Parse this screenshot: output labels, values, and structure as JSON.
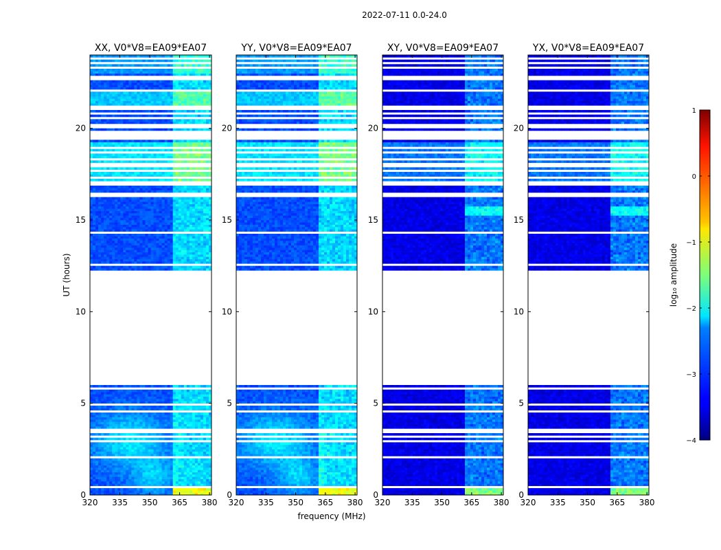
{
  "figure": {
    "suptitle": "2022-07-11 0.0-24.0",
    "xlabel": "frequency (MHz)",
    "ylabel": "UT (hours)"
  },
  "chart_data": {
    "type": "heatmap",
    "x_range": [
      320,
      381
    ],
    "y_range": [
      0,
      24
    ],
    "xticks": [
      320,
      335,
      350,
      365,
      380
    ],
    "yticks": [
      0,
      5,
      10,
      15,
      20
    ],
    "data_segments_hours": [
      [
        0,
        6
      ],
      [
        12.2,
        24
      ]
    ],
    "gap_hours": [
      6,
      12.2
    ],
    "panels": [
      {
        "title": "XX, V0*V8=EA09*EA07",
        "polarization": "XX",
        "base_level": -3.0
      },
      {
        "title": "YY, V0*V8=EA09*EA07",
        "polarization": "YY",
        "base_level": -3.0
      },
      {
        "title": "XY, V0*V8=EA09*EA07",
        "polarization": "XY",
        "base_level": -3.5
      },
      {
        "title": "YX, V0*V8=EA09*EA07",
        "polarization": "YX",
        "base_level": -3.5
      }
    ],
    "colorbar": {
      "label": "log₁₀ amplitude",
      "range": [
        -4,
        1
      ],
      "ticks": [
        1,
        0,
        -1,
        -2,
        -3,
        -4
      ],
      "tick_labels": [
        "1",
        "0",
        "−1",
        "−2",
        "−3",
        "−4"
      ],
      "colormap": "jet"
    }
  }
}
